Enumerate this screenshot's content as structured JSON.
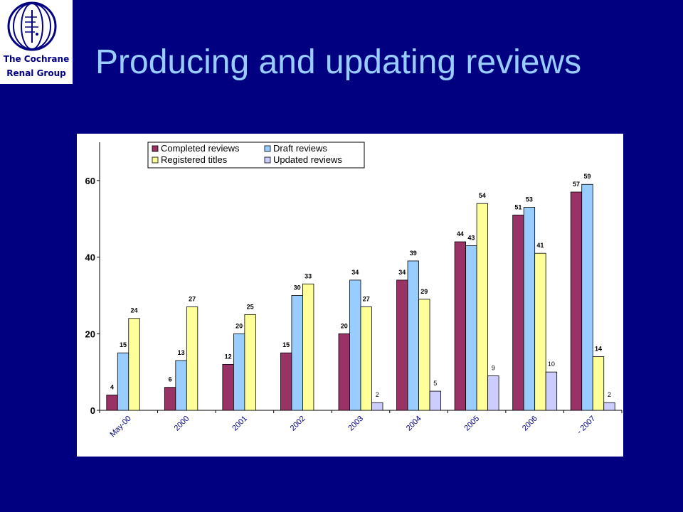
{
  "logo": {
    "line1": "The Cochrane",
    "line2": "Renal Group"
  },
  "slide": {
    "title": "Producing and updating reviews"
  },
  "chart_data": {
    "type": "bar",
    "categories": [
      "May-00",
      "2000",
      "2001",
      "2002",
      "2003",
      "2004",
      "2005",
      "2006",
      "- 2007"
    ],
    "series": [
      {
        "name": "Completed reviews",
        "color": "#993366",
        "values": [
          4,
          6,
          12,
          15,
          20,
          34,
          44,
          51,
          57
        ]
      },
      {
        "name": "Draft reviews",
        "color": "#99ccff",
        "values": [
          15,
          13,
          20,
          30,
          34,
          39,
          43,
          53,
          59
        ]
      },
      {
        "name": "Registered titles",
        "color": "#ffff99",
        "values": [
          24,
          27,
          25,
          33,
          27,
          29,
          54,
          41,
          14
        ]
      },
      {
        "name": "Updated reviews",
        "color": "#ccccff",
        "values": [
          null,
          null,
          null,
          null,
          2,
          5,
          9,
          10,
          2
        ]
      }
    ],
    "ylim": [
      0,
      70
    ],
    "yticks": [
      0,
      20,
      40,
      60
    ],
    "legend": "top",
    "grid": false
  }
}
